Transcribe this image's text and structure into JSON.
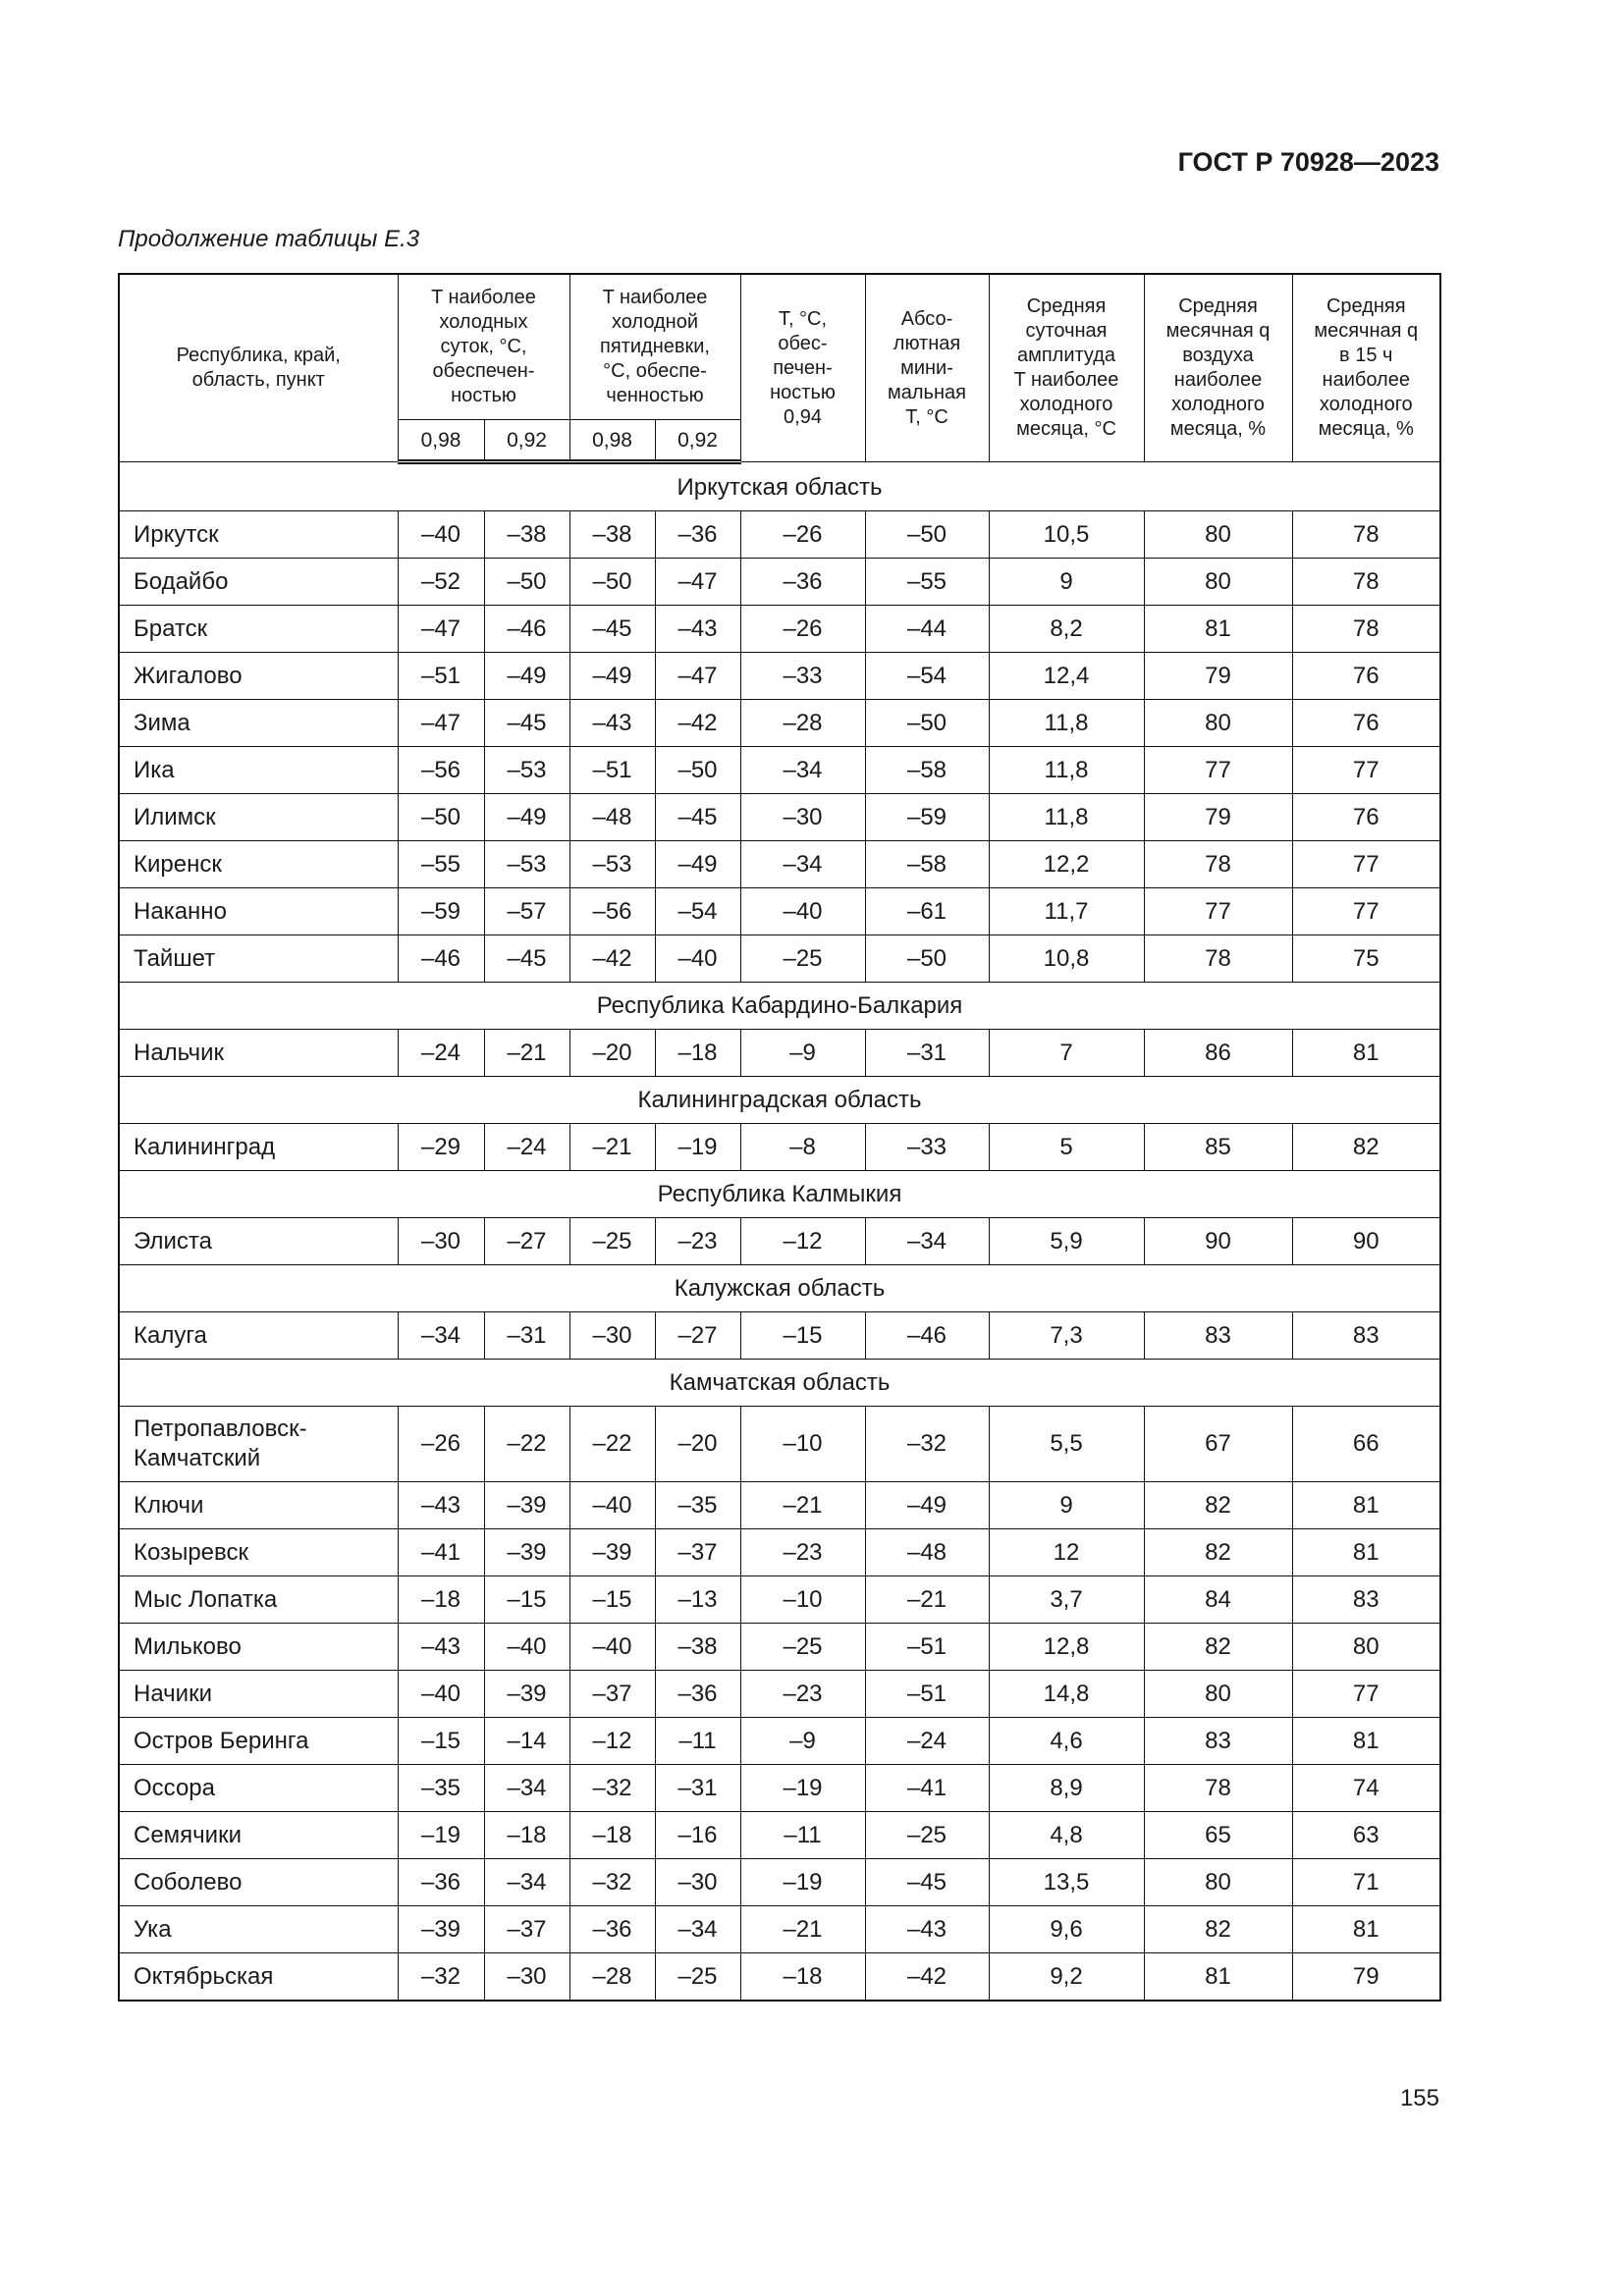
{
  "header": {
    "standard": "ГОСТ Р 70928—2023"
  },
  "caption": "Продолжение таблицы Е.3",
  "table": {
    "columns": [
      "Республика, край,\nобласть, пункт",
      "T наиболее\nхолодных\nсуток, °C,\nобеспечен-\nностью",
      "T наиболее\nхолодной\nпятидневки,\n°C, обеспе-\nченностью",
      "T, °C,\nобес-\nпечен-\nностью\n0,94",
      "Абсо-\nлютная\nмини-\nмальная\nT, °C",
      "Средняя\nсуточная\nамплитуда\nT наиболее\nхолодного\nмесяца, °C",
      "Средняя\nмесячная q\nвоздуха\nнаиболее\nхолодного\nмесяца, %",
      "Средняя\nмесячная q\nв 15 ч\nнаиболее\nхолодного\nмесяца, %"
    ],
    "subcolumns": [
      "0,98",
      "0,92",
      "0,98",
      "0,92"
    ],
    "sections": [
      {
        "title": "Иркутская область",
        "rows": [
          [
            "Иркутск",
            "–40",
            "–38",
            "–38",
            "–36",
            "–26",
            "–50",
            "10,5",
            "80",
            "78"
          ],
          [
            "Бодайбо",
            "–52",
            "–50",
            "–50",
            "–47",
            "–36",
            "–55",
            "9",
            "80",
            "78"
          ],
          [
            "Братск",
            "–47",
            "–46",
            "–45",
            "–43",
            "–26",
            "–44",
            "8,2",
            "81",
            "78"
          ],
          [
            "Жигалово",
            "–51",
            "–49",
            "–49",
            "–47",
            "–33",
            "–54",
            "12,4",
            "79",
            "76"
          ],
          [
            "Зима",
            "–47",
            "–45",
            "–43",
            "–42",
            "–28",
            "–50",
            "11,8",
            "80",
            "76"
          ],
          [
            "Ика",
            "–56",
            "–53",
            "–51",
            "–50",
            "–34",
            "–58",
            "11,8",
            "77",
            "77"
          ],
          [
            "Илимск",
            "–50",
            "–49",
            "–48",
            "–45",
            "–30",
            "–59",
            "11,8",
            "79",
            "76"
          ],
          [
            "Киренск",
            "–55",
            "–53",
            "–53",
            "–49",
            "–34",
            "–58",
            "12,2",
            "78",
            "77"
          ],
          [
            "Наканно",
            "–59",
            "–57",
            "–56",
            "–54",
            "–40",
            "–61",
            "11,7",
            "77",
            "77"
          ],
          [
            "Тайшет",
            "–46",
            "–45",
            "–42",
            "–40",
            "–25",
            "–50",
            "10,8",
            "78",
            "75"
          ]
        ]
      },
      {
        "title": "Республика Кабардино-Балкария",
        "rows": [
          [
            "Нальчик",
            "–24",
            "–21",
            "–20",
            "–18",
            "–9",
            "–31",
            "7",
            "86",
            "81"
          ]
        ]
      },
      {
        "title": "Калининградская область",
        "rows": [
          [
            "Калининград",
            "–29",
            "–24",
            "–21",
            "–19",
            "–8",
            "–33",
            "5",
            "85",
            "82"
          ]
        ]
      },
      {
        "title": "Республика Калмыкия",
        "rows": [
          [
            "Элиста",
            "–30",
            "–27",
            "–25",
            "–23",
            "–12",
            "–34",
            "5,9",
            "90",
            "90"
          ]
        ]
      },
      {
        "title": "Калужская область",
        "rows": [
          [
            "Калуга",
            "–34",
            "–31",
            "–30",
            "–27",
            "–15",
            "–46",
            "7,3",
            "83",
            "83"
          ]
        ]
      },
      {
        "title": "Камчатская область",
        "rows": [
          [
            "Петропавловск-\nКамчатский",
            "–26",
            "–22",
            "–22",
            "–20",
            "–10",
            "–32",
            "5,5",
            "67",
            "66"
          ],
          [
            "Ключи",
            "–43",
            "–39",
            "–40",
            "–35",
            "–21",
            "–49",
            "9",
            "82",
            "81"
          ],
          [
            "Козыревск",
            "–41",
            "–39",
            "–39",
            "–37",
            "–23",
            "–48",
            "12",
            "82",
            "81"
          ],
          [
            "Мыс Лопатка",
            "–18",
            "–15",
            "–15",
            "–13",
            "–10",
            "–21",
            "3,7",
            "84",
            "83"
          ],
          [
            "Мильково",
            "–43",
            "–40",
            "–40",
            "–38",
            "–25",
            "–51",
            "12,8",
            "82",
            "80"
          ],
          [
            "Начики",
            "–40",
            "–39",
            "–37",
            "–36",
            "–23",
            "–51",
            "14,8",
            "80",
            "77"
          ],
          [
            "Остров Беринга",
            "–15",
            "–14",
            "–12",
            "–11",
            "–9",
            "–24",
            "4,6",
            "83",
            "81"
          ],
          [
            "Оссора",
            "–35",
            "–34",
            "–32",
            "–31",
            "–19",
            "–41",
            "8,9",
            "78",
            "74"
          ],
          [
            "Семячики",
            "–19",
            "–18",
            "–18",
            "–16",
            "–11",
            "–25",
            "4,8",
            "65",
            "63"
          ],
          [
            "Соболево",
            "–36",
            "–34",
            "–32",
            "–30",
            "–19",
            "–45",
            "13,5",
            "80",
            "71"
          ],
          [
            "Ука",
            "–39",
            "–37",
            "–36",
            "–34",
            "–21",
            "–43",
            "9,6",
            "82",
            "81"
          ],
          [
            "Октябрьская",
            "–32",
            "–30",
            "–28",
            "–25",
            "–18",
            "–42",
            "9,2",
            "81",
            "79"
          ]
        ]
      }
    ]
  },
  "page_number": "155"
}
